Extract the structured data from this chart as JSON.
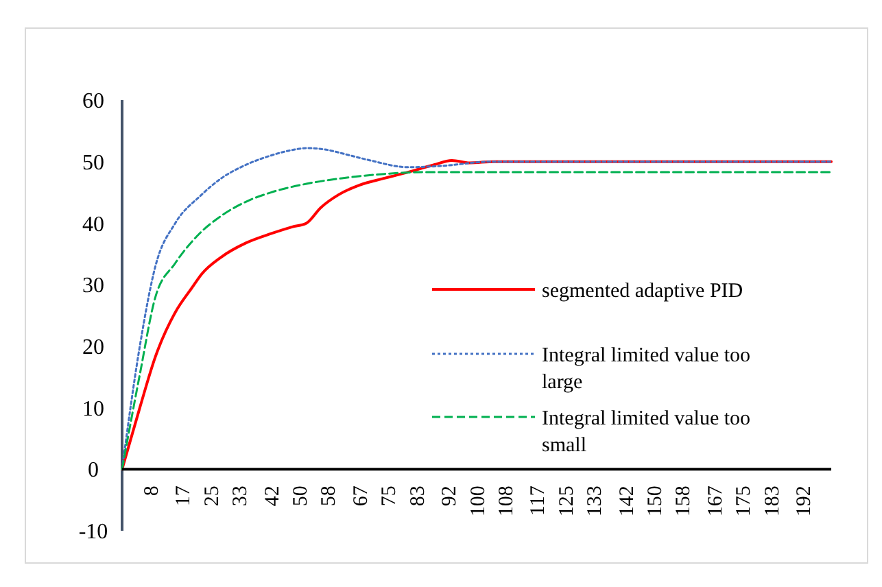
{
  "chart_data": {
    "type": "line",
    "xlim": [
      0,
      200
    ],
    "xticks": [
      8,
      17,
      25,
      33,
      42,
      50,
      58,
      67,
      75,
      83,
      92,
      100,
      108,
      117,
      125,
      133,
      142,
      150,
      158,
      167,
      175,
      183,
      192
    ],
    "ylim": [
      -10,
      60
    ],
    "yticks": [
      -10,
      0,
      10,
      20,
      30,
      40,
      50,
      60
    ],
    "grid": false,
    "legend": "right",
    "marker": "none",
    "series": [
      {
        "name": "segmented adaptive PID",
        "color": "#ff0000",
        "line_style": "solid",
        "x": [
          0,
          5,
          9.4,
          15,
          19.7,
          22.4,
          28,
          35,
          42,
          48,
          52,
          56,
          61,
          67,
          74,
          82,
          88,
          93,
          98,
          105,
          120,
          150,
          200
        ],
        "values": [
          0,
          10,
          18.3,
          25.5,
          29.5,
          31.7,
          34.5,
          36.8,
          38.3,
          39.4,
          40,
          42.5,
          44.6,
          46.2,
          47.3,
          48.5,
          49.5,
          50.2,
          49.8,
          50,
          50,
          50,
          50
        ]
      },
      {
        "name": "Integral limited value too large",
        "color": "#4472c4",
        "line_style": "dotted",
        "x": [
          0,
          5,
          9.4,
          15,
          22,
          28,
          35,
          42,
          48,
          52,
          57,
          63,
          70,
          80.5,
          90,
          104,
          120,
          150,
          200
        ],
        "values": [
          0,
          20,
          33,
          40,
          44.4,
          47.3,
          49.5,
          51,
          51.9,
          52.2,
          52,
          51.2,
          50.2,
          49.1,
          49.3,
          50,
          50,
          50,
          50
        ]
      },
      {
        "name": "Integral limited value too small",
        "color": "#00b050",
        "line_style": "dashed",
        "x": [
          0,
          5,
          9.4,
          15,
          22,
          28,
          35,
          42,
          52,
          62,
          74,
          85,
          100,
          150,
          200
        ],
        "values": [
          0,
          15.4,
          28,
          33.5,
          38.4,
          41.2,
          43.5,
          45,
          46.4,
          47.3,
          48,
          48.3,
          48.3,
          48.3,
          48.3
        ]
      }
    ]
  }
}
